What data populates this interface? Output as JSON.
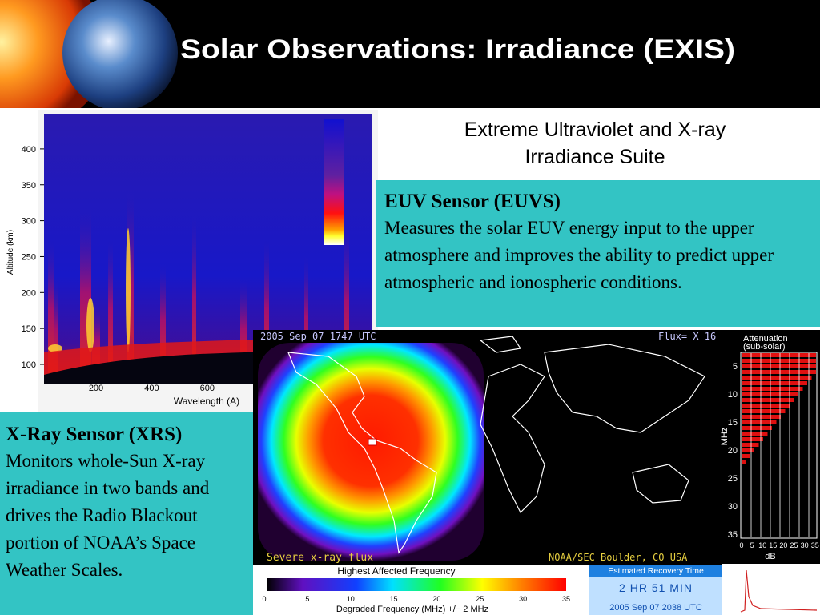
{
  "header": {
    "title": "Solar Observations: Irradiance (EXIS)"
  },
  "subtitle": "Extreme Ultraviolet and X-ray Irradiance Suite",
  "euvs": {
    "heading": "EUV Sensor (EUVS)",
    "body": "Measures the solar EUV energy input to the upper atmosphere and improves the ability to predict upper atmospheric and ionospheric conditions."
  },
  "xrs": {
    "heading": "X-Ray Sensor (XRS)",
    "body": "Monitors whole-Sun X-ray irradiance in two bands and drives the Radio Blackout portion of NOAA’s Space Weather Scales."
  },
  "altitude_plot": {
    "y_label": "Altitude (km)",
    "yticks": [
      100,
      150,
      200,
      250,
      300,
      350,
      400
    ],
    "x_label": "Wavelength (A)",
    "xticks": [
      200,
      400,
      600
    ]
  },
  "flux_map": {
    "timestamp": "2005 Sep 07 1747 UTC",
    "flux": "Flux= X 16",
    "status": "Severe x-ray flux",
    "source": "NOAA/SEC Boulder, CO USA"
  },
  "attenuation": {
    "title": "Attenuation",
    "subtitle": "(sub-solar)",
    "y_label": "MHz",
    "yticks": [
      5,
      10,
      15,
      20,
      25,
      30,
      35
    ],
    "xticks": [
      0,
      5,
      10,
      15,
      20,
      25,
      30,
      35
    ],
    "x_label": "dB"
  },
  "frequency_scale": {
    "title": "Highest Affected Frequency",
    "ticks": [
      0,
      5,
      10,
      15,
      20,
      25,
      30,
      35
    ],
    "label": "Degraded Frequency (MHz) +/− 2 MHz"
  },
  "recovery": {
    "title": "Estimated Recovery Time",
    "duration": "2 HR 51 MIN",
    "time": "2005 Sep 07 2038 UTC"
  }
}
